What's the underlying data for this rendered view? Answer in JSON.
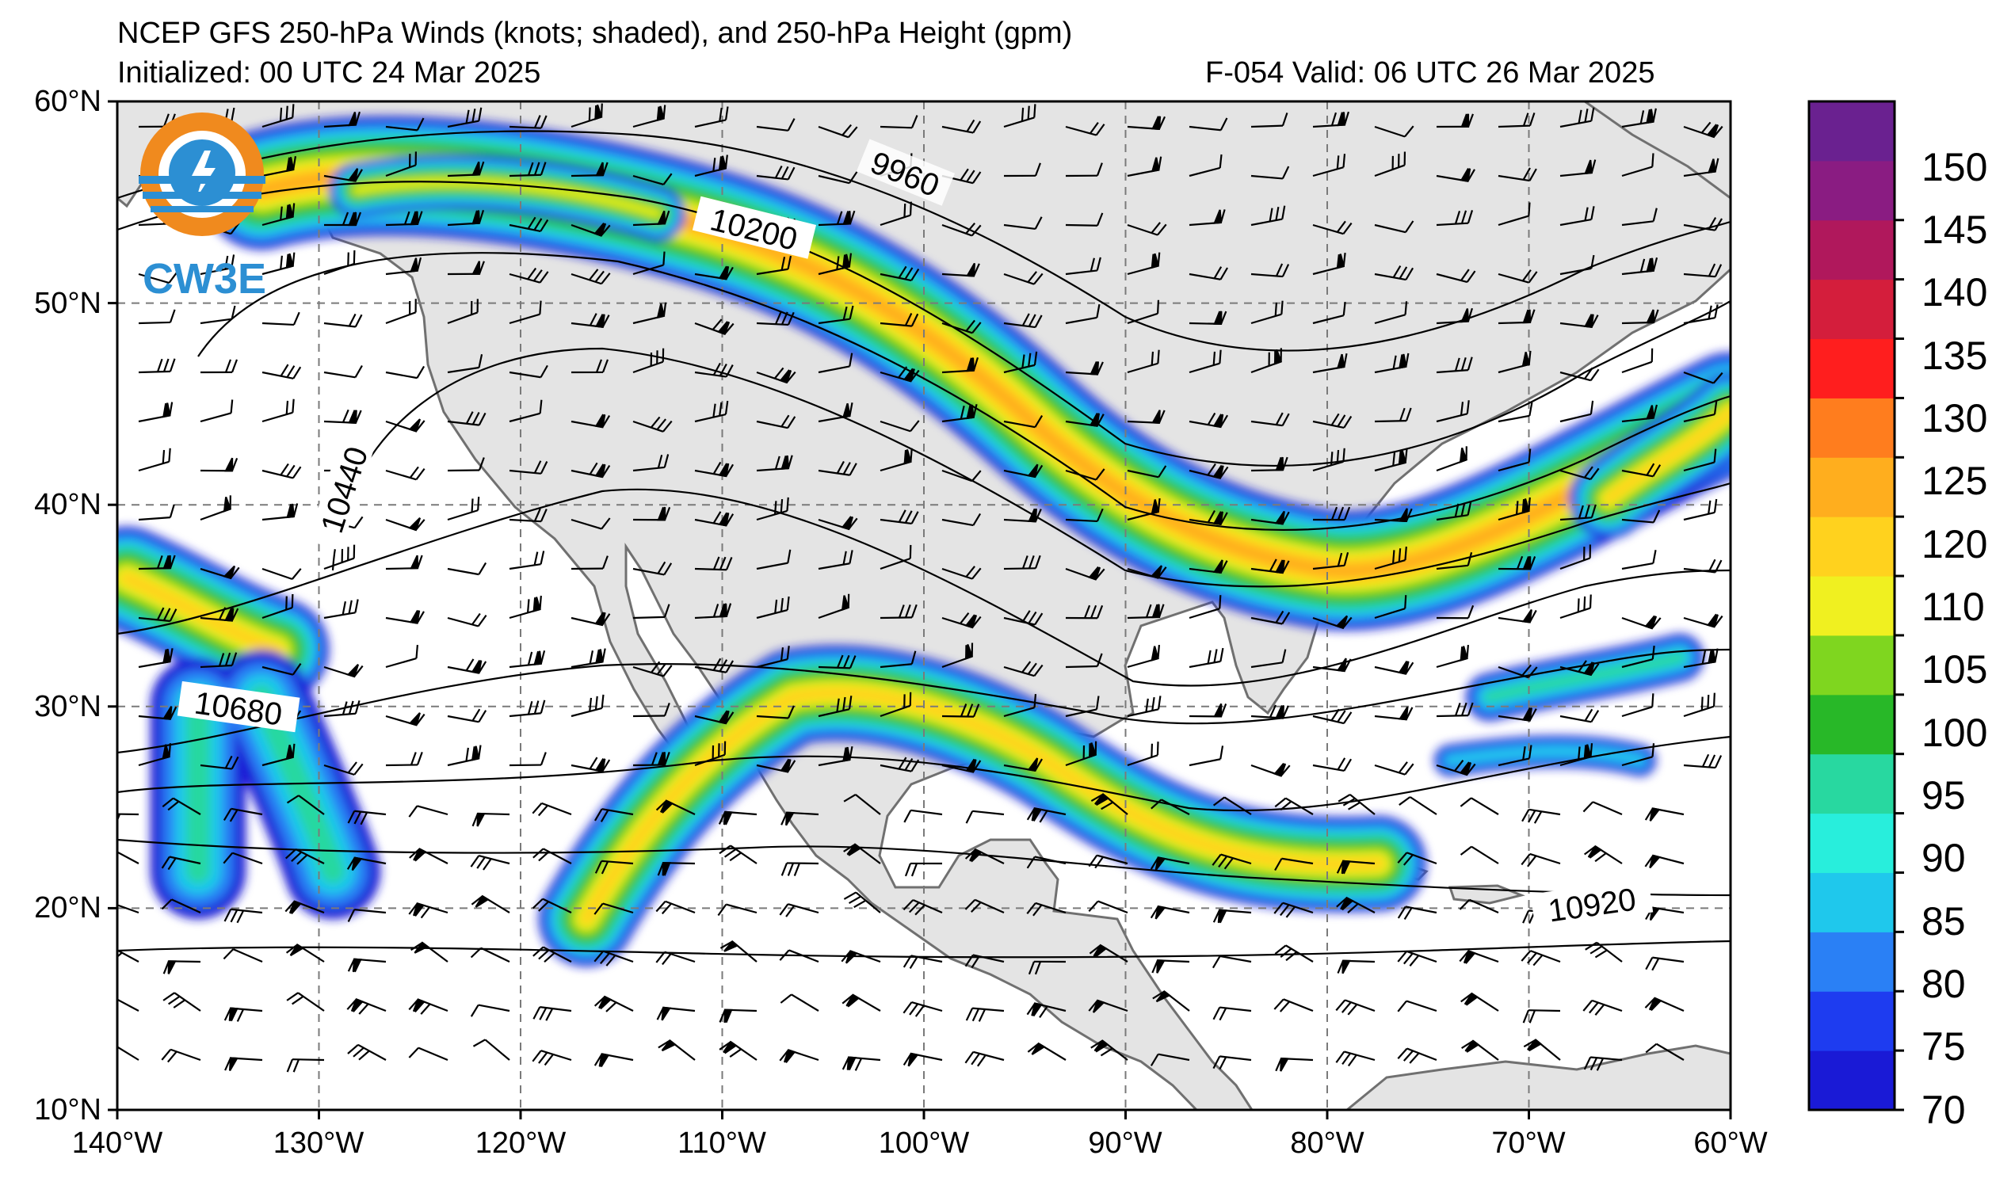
{
  "title": {
    "line1": "NCEP GFS 250-hPa Winds (knots; shaded), and 250-hPa Height (gpm)",
    "line2": "Initialized: 00 UTC 24 Mar 2025",
    "valid": "F-054  Valid: 06 UTC 26 Mar 2025"
  },
  "logo": {
    "text": "CW3E",
    "name": "cw3e-logo"
  },
  "axes": {
    "lat_labels": [
      "60°N",
      "50°N",
      "40°N",
      "30°N",
      "20°N",
      "10°N"
    ],
    "lon_labels": [
      "140°W",
      "130°W",
      "120°W",
      "110°W",
      "100°W",
      "90°W",
      "80°W",
      "70°W",
      "60°W"
    ]
  },
  "colorbar": {
    "labels": [
      "70",
      "75",
      "80",
      "85",
      "90",
      "95",
      "100",
      "105",
      "110",
      "120",
      "125",
      "130",
      "135",
      "140",
      "145",
      "150"
    ],
    "colors": [
      "#1a1ad6",
      "#1e3cf0",
      "#2a80f5",
      "#1fc8ec",
      "#28eedc",
      "#28d8a0",
      "#28b828",
      "#7fd61f",
      "#f0f020",
      "#ffd21e",
      "#ffae1e",
      "#ff7d1e",
      "#ff1e1e",
      "#d41e3c",
      "#b0185c",
      "#8a1c82",
      "#6a2190"
    ]
  },
  "contours": {
    "labels": [
      "9960",
      "10200",
      "10440",
      "10680",
      "10920"
    ]
  },
  "colors": {
    "land": "#e4e4e4",
    "ocean": "#ffffff",
    "coast": "#707070",
    "grid": "#7a7a7a"
  }
}
